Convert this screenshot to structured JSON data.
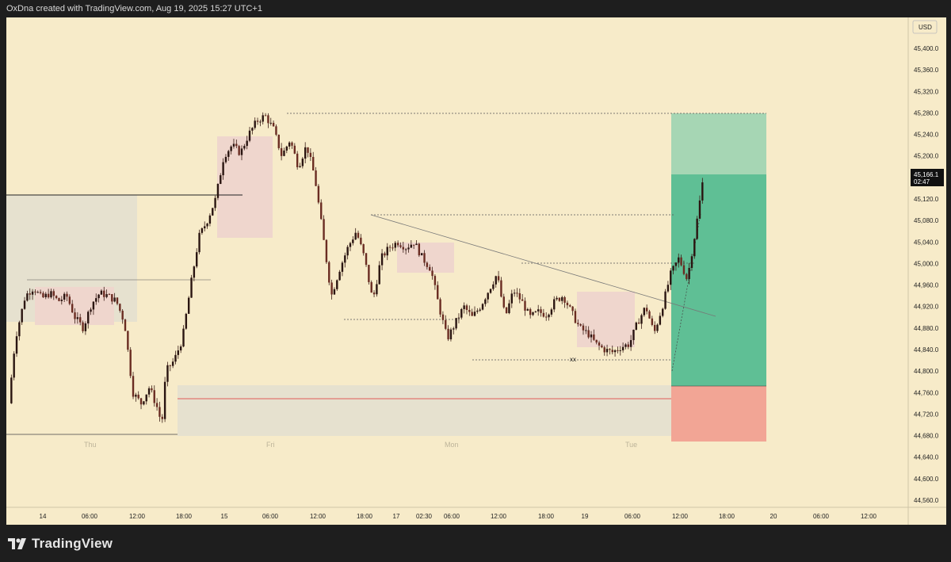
{
  "header": {
    "attribution": "OxDna created with TradingView.com, Aug 19, 2025 15:27 UTC+1"
  },
  "footer": {
    "brand": "TradingView",
    "logo_icon": "tradingview-logo-icon"
  },
  "colors": {
    "background": "#f7ebc9",
    "candle": "#3a1d16",
    "zone_fill": "#efd6cd",
    "range_fill": "#e6e1cf",
    "target_fill": "#5fbf95",
    "target_upper_fill": "#a6d6b4",
    "stop_fill": "#f2a595",
    "stop_line": "#e05a5a",
    "price_label_bg": "#111111"
  },
  "chart_data": {
    "type": "candlestick",
    "currency": "USD",
    "ylim": [
      44520,
      45440
    ],
    "y_ticks": [
      "45,400.0",
      "45,360.0",
      "45,320.0",
      "45,280.0",
      "45,240.0",
      "45,200.0",
      "45,160.0",
      "45,120.0",
      "45,080.0",
      "45,040.0",
      "45,000.0",
      "44,960.0",
      "44,920.0",
      "44,880.0",
      "44,840.0",
      "44,800.0",
      "44,760.0",
      "44,720.0",
      "44,680.0",
      "44,640.0",
      "44,600.0",
      "44,560.0"
    ],
    "x_ticks": [
      "14",
      "06:00",
      "12:00",
      "18:00",
      "15",
      "06:00",
      "12:00",
      "18:00",
      "17",
      "02:30",
      "06:00",
      "12:00",
      "18:00",
      "19",
      "06:00",
      "12:00",
      "18:00",
      "20",
      "06:00",
      "12:00"
    ],
    "day_labels": [
      "Thu",
      "Fri",
      "Mon",
      "Tue"
    ],
    "last_price": "45,166.1",
    "countdown": "02:47",
    "annotation": "xx",
    "close_path": [
      {
        "t": 0.0,
        "p": 44740
      },
      {
        "t": 0.8,
        "p": 44860
      },
      {
        "t": 2,
        "p": 44940
      },
      {
        "t": 3,
        "p": 44955
      },
      {
        "t": 4,
        "p": 44935
      },
      {
        "t": 5,
        "p": 44945
      },
      {
        "t": 6,
        "p": 44930
      },
      {
        "t": 7,
        "p": 44940
      },
      {
        "t": 8,
        "p": 44900
      },
      {
        "t": 9,
        "p": 44880
      },
      {
        "t": 10,
        "p": 44925
      },
      {
        "t": 11,
        "p": 44945
      },
      {
        "t": 12,
        "p": 44940
      },
      {
        "t": 13,
        "p": 44930
      },
      {
        "t": 14,
        "p": 44890
      },
      {
        "t": 15,
        "p": 44760
      },
      {
        "t": 16,
        "p": 44740
      },
      {
        "t": 17,
        "p": 44770
      },
      {
        "t": 18,
        "p": 44730
      },
      {
        "t": 18.5,
        "p": 44700
      },
      {
        "t": 19,
        "p": 44800
      },
      {
        "t": 20,
        "p": 44820
      },
      {
        "t": 21,
        "p": 44860
      },
      {
        "t": 22,
        "p": 44960
      },
      {
        "t": 23,
        "p": 45050
      },
      {
        "t": 24,
        "p": 45080
      },
      {
        "t": 25,
        "p": 45120
      },
      {
        "t": 26,
        "p": 45200
      },
      {
        "t": 27,
        "p": 45220
      },
      {
        "t": 28,
        "p": 45205
      },
      {
        "t": 29,
        "p": 45240
      },
      {
        "t": 30,
        "p": 45265
      },
      {
        "t": 31,
        "p": 45275
      },
      {
        "t": 32,
        "p": 45250
      },
      {
        "t": 33,
        "p": 45200
      },
      {
        "t": 34,
        "p": 45230
      },
      {
        "t": 35,
        "p": 45180
      },
      {
        "t": 36,
        "p": 45220
      },
      {
        "t": 37,
        "p": 45160
      },
      {
        "t": 38,
        "p": 45050
      },
      {
        "t": 39,
        "p": 44940
      },
      {
        "t": 40,
        "p": 44990
      },
      {
        "t": 41,
        "p": 45030
      },
      {
        "t": 42,
        "p": 45060
      },
      {
        "t": 43,
        "p": 45010
      },
      {
        "t": 44,
        "p": 44930
      },
      {
        "t": 45,
        "p": 45010
      },
      {
        "t": 46,
        "p": 45030
      },
      {
        "t": 47,
        "p": 45040
      },
      {
        "t": 48,
        "p": 45030
      },
      {
        "t": 49,
        "p": 45040
      },
      {
        "t": 50,
        "p": 45010
      },
      {
        "t": 51,
        "p": 44990
      },
      {
        "t": 52,
        "p": 44920
      },
      {
        "t": 53,
        "p": 44860
      },
      {
        "t": 54,
        "p": 44890
      },
      {
        "t": 55,
        "p": 44920
      },
      {
        "t": 56,
        "p": 44900
      },
      {
        "t": 57,
        "p": 44920
      },
      {
        "t": 58,
        "p": 44950
      },
      {
        "t": 59,
        "p": 44980
      },
      {
        "t": 60,
        "p": 44900
      },
      {
        "t": 61,
        "p": 44950
      },
      {
        "t": 62,
        "p": 44930
      },
      {
        "t": 63,
        "p": 44900
      },
      {
        "t": 64,
        "p": 44910
      },
      {
        "t": 65,
        "p": 44905
      },
      {
        "t": 66,
        "p": 44930
      },
      {
        "t": 67,
        "p": 44940
      },
      {
        "t": 68,
        "p": 44910
      },
      {
        "t": 69,
        "p": 44880
      },
      {
        "t": 70,
        "p": 44870
      },
      {
        "t": 71,
        "p": 44850
      },
      {
        "t": 72,
        "p": 44840
      },
      {
        "t": 73,
        "p": 44835
      },
      {
        "t": 74,
        "p": 44845
      },
      {
        "t": 75,
        "p": 44850
      },
      {
        "t": 76,
        "p": 44890
      },
      {
        "t": 77,
        "p": 44920
      },
      {
        "t": 78,
        "p": 44870
      },
      {
        "t": 79,
        "p": 44920
      },
      {
        "t": 80,
        "p": 44980
      },
      {
        "t": 81,
        "p": 45010
      },
      {
        "t": 82,
        "p": 44970
      },
      {
        "t": 83,
        "p": 45060
      },
      {
        "t": 84,
        "p": 45166
      }
    ]
  }
}
